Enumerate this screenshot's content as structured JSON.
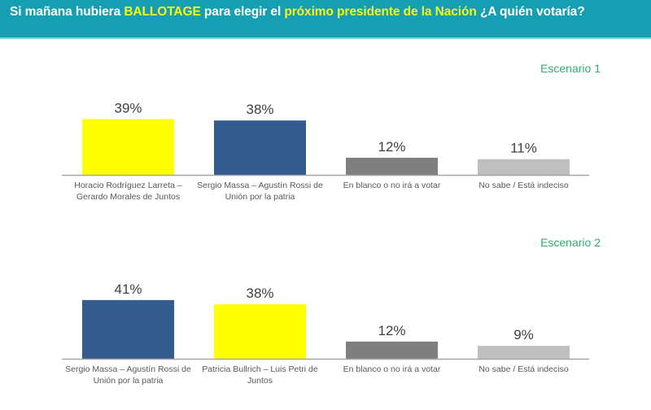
{
  "header": {
    "title_parts": [
      {
        "text": "Si mañana hubiera ",
        "highlight": false
      },
      {
        "text": "BALLOTAGE",
        "highlight": true
      },
      {
        "text": " para elegir el ",
        "highlight": false
      },
      {
        "text": "próximo presidente de la Nación",
        "highlight": true
      },
      {
        "text": " ¿A quién votaría?",
        "highlight": false
      }
    ],
    "background_color": "#169fb2",
    "highlight_color": "#f7f71c"
  },
  "chart_data": [
    {
      "type": "bar",
      "title": "Escenario 1",
      "xlabel": "",
      "ylabel": "",
      "ylim": [
        0,
        45
      ],
      "grid": false,
      "legend": "none",
      "value_format": "percent",
      "categories": [
        "Horacio Rodríguez Larreta – Gerardo Morales de Juntos",
        "Sergio Massa – Agustín Rossi de Unión por la patria",
        "En blanco o no irá a votar",
        "No sabe / Está indeciso"
      ],
      "category_lines": [
        [
          "Horacio Rodríguez Larreta –",
          "Gerardo Morales de Juntos"
        ],
        [
          "Sergio Massa – Agustín Rossi de",
          "Unión por la patria"
        ],
        [
          "En blanco o no irá a votar"
        ],
        [
          "No sabe / Está indeciso"
        ]
      ],
      "values": [
        39,
        38,
        12,
        11
      ],
      "data_labels": [
        "39%",
        "38%",
        "12%",
        "11%"
      ],
      "colors": [
        "#ffff00",
        "#335b8e",
        "#7f7f7f",
        "#bfbfbf"
      ]
    },
    {
      "type": "bar",
      "title": "Escenario 2",
      "xlabel": "",
      "ylabel": "",
      "ylim": [
        0,
        45
      ],
      "grid": false,
      "legend": "none",
      "value_format": "percent",
      "categories": [
        "Sergio Massa – Agustín Rossi de Unión por la patria",
        "Patricia Bullrich – Luis Petri de Juntos",
        "En blanco o no irá a votar",
        "No sabe / Está indeciso"
      ],
      "category_lines": [
        [
          "Sergio Massa – Agustín Rossi de",
          "Unión por la patria"
        ],
        [
          "Patricia Bullrich – Luis Petri de",
          "Juntos"
        ],
        [
          "En blanco o no irá a votar"
        ],
        [
          "No sabe / Está indeciso"
        ]
      ],
      "values": [
        41,
        38,
        12,
        9
      ],
      "data_labels": [
        "41%",
        "38%",
        "12%",
        "9%"
      ],
      "colors": [
        "#335b8e",
        "#ffff00",
        "#7f7f7f",
        "#bfbfbf"
      ]
    }
  ]
}
